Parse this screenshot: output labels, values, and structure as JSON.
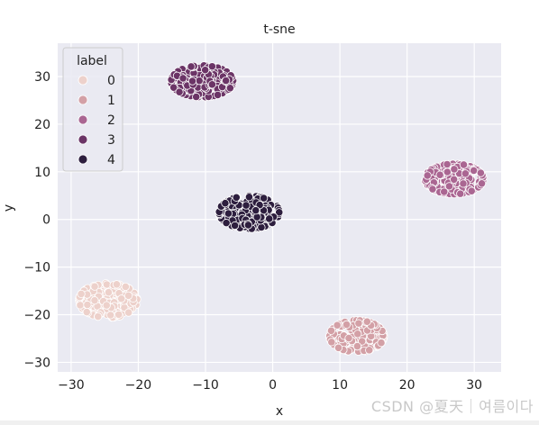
{
  "chart_data": {
    "type": "scatter",
    "title": "t-sne",
    "xlabel": "x",
    "ylabel": "y",
    "xlim": [
      -32,
      34
    ],
    "ylim": [
      -32,
      37
    ],
    "xticks": [
      -30,
      -20,
      -10,
      0,
      10,
      20,
      30
    ],
    "yticks": [
      -30,
      -20,
      -10,
      0,
      10,
      20,
      30
    ],
    "xtick_labels": [
      "−30",
      "−20",
      "−10",
      "0",
      "10",
      "20",
      "30"
    ],
    "ytick_labels": [
      "−30",
      "−20",
      "−10",
      "0",
      "10",
      "20",
      "30"
    ],
    "grid": true,
    "legend": {
      "title": "label",
      "placement": "top-left",
      "entries": [
        "0",
        "1",
        "2",
        "3",
        "4"
      ]
    },
    "series": [
      {
        "name": "0",
        "color": "#edd1cb",
        "center": [
          -24.5,
          -17
        ],
        "spread": [
          3.0,
          2.5
        ],
        "count": 190
      },
      {
        "name": "1",
        "color": "#d3a0a6",
        "center": [
          12.5,
          -24.5
        ],
        "spread": [
          2.8,
          2.3
        ],
        "count": 190
      },
      {
        "name": "2",
        "color": "#aa6692",
        "center": [
          27,
          8.5
        ],
        "spread": [
          3.0,
          2.2
        ],
        "count": 190
      },
      {
        "name": "3",
        "color": "#6b3466",
        "center": [
          -10.5,
          29
        ],
        "spread": [
          3.2,
          2.3
        ],
        "count": 190
      },
      {
        "name": "4",
        "color": "#2d1e3e",
        "center": [
          -3.5,
          1.5
        ],
        "spread": [
          3.1,
          2.4
        ],
        "count": 190
      }
    ]
  },
  "watermark": "CSDN @夏天｜여름이다"
}
